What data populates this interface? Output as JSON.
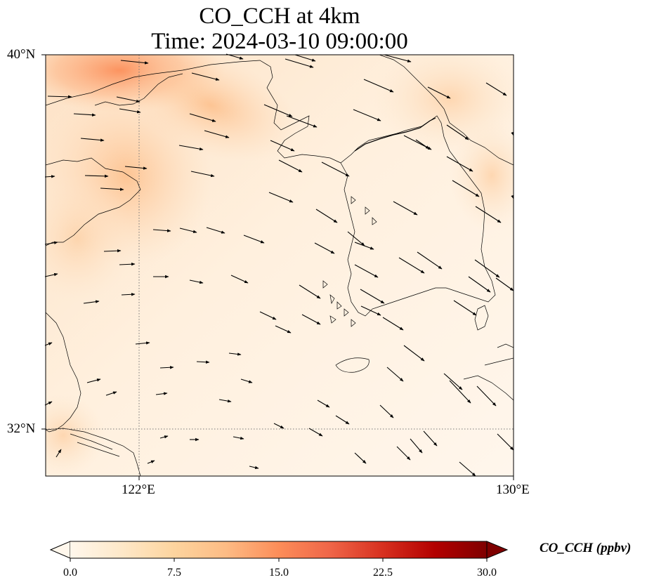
{
  "title": {
    "line1": "CO_CCH at 4km",
    "line2": "Time: 2024-03-10 09:00:00"
  },
  "axes": {
    "lat_labels": [
      "40°N",
      "32°N"
    ],
    "lon_labels": [
      "122°E",
      "130°E"
    ],
    "lat_range": [
      31,
      40
    ],
    "lon_range": [
      120,
      130
    ],
    "gridlines": "dotted at 122°E and 32°N"
  },
  "colorbar": {
    "label": "CO_CCH (ppbv)",
    "ticks": [
      "0.0",
      "7.5",
      "15.0",
      "22.5",
      "30.0"
    ],
    "range": [
      0,
      30
    ],
    "colormap": "OrRd",
    "extend": "both",
    "colors": [
      "#fff7ec",
      "#fee8c8",
      "#fdd49e",
      "#fdbb84",
      "#fc8d59",
      "#ef6548",
      "#d7301f",
      "#b30000",
      "#7f0000"
    ]
  },
  "field": {
    "description_colors": {
      "background": "#fff4e6",
      "plume": "#fdb27e",
      "plume_core": "#fc9a65"
    }
  },
  "wind_vectors": "arrows pointing mostly east to southeast"
}
